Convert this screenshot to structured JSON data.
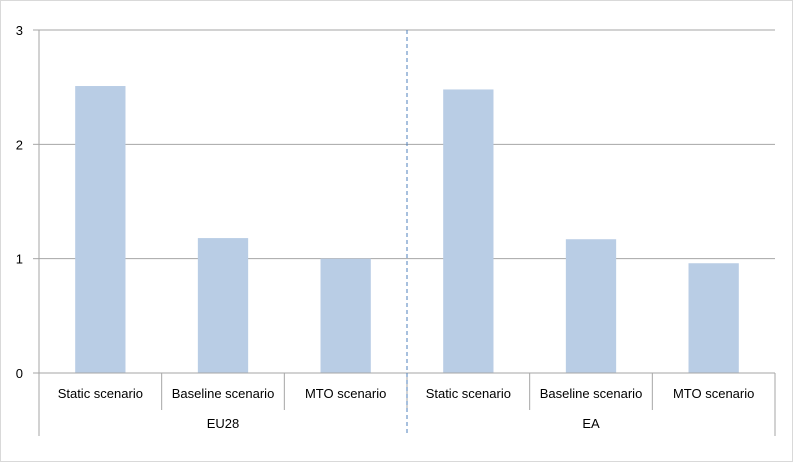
{
  "chart_data": {
    "type": "bar",
    "categories": [
      "Static scenario",
      "Baseline scenario",
      "MTO scenario",
      "Static scenario",
      "Baseline scenario",
      "MTO scenario"
    ],
    "groups": [
      {
        "label": "EU28",
        "categories": [
          0,
          1,
          2
        ]
      },
      {
        "label": "EA",
        "categories": [
          3,
          4,
          5
        ]
      }
    ],
    "values": [
      2.51,
      1.18,
      1.0,
      2.48,
      1.17,
      0.96
    ],
    "ylim": [
      0,
      3
    ],
    "yticks": [
      "0",
      "1",
      "2",
      "3"
    ],
    "grid": true,
    "title": "",
    "xlabel": "",
    "ylabel": "",
    "bar_color": "#b9cde5",
    "grid_color": "#a6a6a6",
    "separator_color": "#4f81bd"
  }
}
